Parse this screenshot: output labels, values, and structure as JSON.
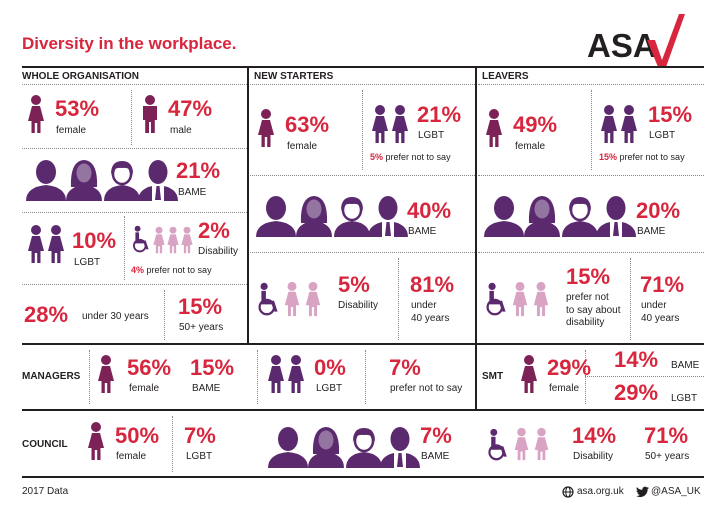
{
  "title": "Diversity in the workplace.",
  "logo": {
    "text": "ASA",
    "mark_color": "#d7263d"
  },
  "colors": {
    "accent": "#d7263d",
    "dark_purple": "#5b2a6e",
    "magenta": "#7d2256",
    "pink": "#d9a3c4",
    "ink": "#231f20"
  },
  "whole": {
    "heading": "WHOLE ORGANISATION",
    "female_pct": "53%",
    "female_label": "female",
    "male_pct": "47%",
    "male_label": "male",
    "bame_pct": "21%",
    "bame_label": "BAME",
    "lgbt_pct": "10%",
    "lgbt_label": "LGBT",
    "disability_pct": "2%",
    "disability_label": "Disability",
    "pnts_pct": "4%",
    "pnts_label": "prefer not to say",
    "under30_pct": "28%",
    "under30_label": "under 30 years",
    "over50_pct": "15%",
    "over50_label": "50+ years"
  },
  "starters": {
    "heading": "NEW STARTERS",
    "female_pct": "63%",
    "female_label": "female",
    "lgbt_pct": "21%",
    "lgbt_label": "LGBT",
    "pnts_pct": "5%",
    "pnts_label": "prefer not to say",
    "bame_pct": "40%",
    "bame_label": "BAME",
    "disability_pct": "5%",
    "disability_label": "Disability",
    "under40_pct": "81%",
    "under40_label1": "under",
    "under40_label2": "40 years"
  },
  "leavers": {
    "heading": "LEAVERS",
    "female_pct": "49%",
    "female_label": "female",
    "lgbt_pct": "15%",
    "lgbt_label": "LGBT",
    "pnts_pct": "15%",
    "pnts_label": "prefer not to say",
    "bame_pct": "20%",
    "bame_label": "BAME",
    "dis_pnts_pct": "15%",
    "dis_pnts_l1": "prefer not",
    "dis_pnts_l2": "to say about",
    "dis_pnts_l3": "disability",
    "under40_pct": "71%",
    "under40_label1": "under",
    "under40_label2": "40 years"
  },
  "managers": {
    "heading": "MANAGERS",
    "female_pct": "56%",
    "female_label": "female",
    "bame_pct": "15%",
    "bame_label": "BAME",
    "lgbt_pct": "0%",
    "lgbt_label": "LGBT",
    "pnts_pct": "7%",
    "pnts_label": "prefer not to say"
  },
  "smt": {
    "heading": "SMT",
    "female_pct": "29%",
    "female_label": "female",
    "bame_pct": "14%",
    "bame_label": "BAME",
    "lgbt_pct": "29%",
    "lgbt_label": "LGBT"
  },
  "council": {
    "heading": "COUNCIL",
    "female_pct": "50%",
    "female_label": "female",
    "lgbt_pct": "7%",
    "lgbt_label": "LGBT",
    "bame_pct": "7%",
    "bame_label": "BAME",
    "disability_pct": "14%",
    "disability_label": "Disability",
    "over50_pct": "71%",
    "over50_label": "50+ years"
  },
  "footer": {
    "data_year": "2017 Data",
    "website": "asa.org.uk",
    "twitter": "@ASA_UK"
  }
}
